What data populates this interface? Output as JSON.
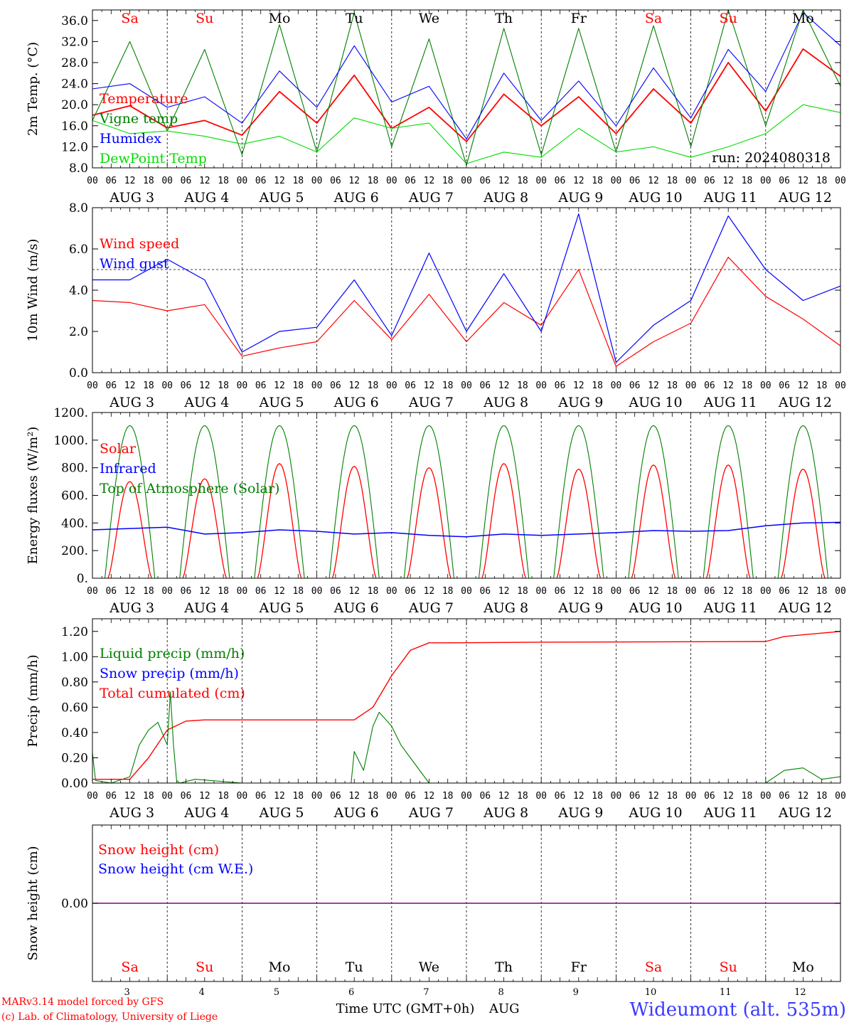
{
  "footer": {
    "model_line": "MARv3.14 model forced by GFS",
    "lab_line": "(c) Lab. of Climatology, University of Liege",
    "xlabel": "Time UTC (GMT+0h)",
    "month": "AUG",
    "station": "Wideumont (alt. 535m)"
  },
  "days": [
    {
      "label": "Sa",
      "date": "3",
      "weekend": true
    },
    {
      "label": "Su",
      "date": "4",
      "weekend": true
    },
    {
      "label": "Mo",
      "date": "5",
      "weekend": false
    },
    {
      "label": "Tu",
      "date": "6",
      "weekend": false
    },
    {
      "label": "We",
      "date": "7",
      "weekend": false
    },
    {
      "label": "Th",
      "date": "8",
      "weekend": false
    },
    {
      "label": "Fr",
      "date": "9",
      "weekend": false
    },
    {
      "label": "Sa",
      "date": "10",
      "weekend": true
    },
    {
      "label": "Su",
      "date": "11",
      "weekend": true
    },
    {
      "label": "Mo",
      "date": "12",
      "weekend": false
    }
  ],
  "hour_ticks": [
    "00",
    "06",
    "12",
    "18"
  ],
  "final_hour_tick": "00",
  "date_labels": [
    "AUG  3",
    "AUG  4",
    "AUG  5",
    "AUG  6",
    "AUG  7",
    "AUG  8",
    "AUG  9",
    "AUG 10",
    "AUG 11",
    "AUG 12"
  ],
  "colors": {
    "red": "#ff0000",
    "green": "#008000",
    "blue": "#0000ff",
    "lightgreen": "#00dd00",
    "purple": "#800080",
    "weekend": "#ff0000"
  },
  "chart_data": [
    {
      "type": "line",
      "ylabel": "2m Temp. (°C)",
      "ylim": [
        8,
        38
      ],
      "yticks": [
        8,
        12,
        16,
        20,
        24,
        28,
        32,
        36
      ],
      "ytick_labels": [
        "8.0",
        "12.0",
        "16.0",
        "20.0",
        "24.0",
        "28.0",
        "32.0",
        "36.0"
      ],
      "annotation": "run: 2024080318",
      "x_hours": [
        0,
        12,
        24,
        36,
        48,
        60,
        72,
        84,
        96,
        108,
        120,
        132,
        144,
        156,
        168,
        180,
        192,
        204,
        216,
        228,
        240
      ],
      "series": [
        {
          "name": "Temperature",
          "color": "#ff0000",
          "values": [
            18.0,
            19.8,
            15.6,
            17.0,
            14.2,
            22.5,
            16.5,
            25.6,
            15.5,
            19.5,
            13.0,
            22.0,
            16.0,
            21.5,
            14.5,
            23.0,
            16.5,
            28.0,
            18.8,
            30.6,
            25.4
          ]
        },
        {
          "name": "Vigne temp",
          "color": "#008000",
          "values": [
            17.0,
            32.0,
            15.0,
            30.5,
            10.5,
            35.2,
            11.0,
            37.5,
            12.0,
            32.5,
            8.5,
            34.5,
            10.5,
            34.5,
            11.0,
            35.0,
            12.0,
            38.0,
            16.0,
            38.0,
            23.5
          ]
        },
        {
          "name": "Humidex",
          "color": "#0000ff",
          "values": [
            23.0,
            24.0,
            19.5,
            21.5,
            16.5,
            26.4,
            19.5,
            31.2,
            20.5,
            23.5,
            13.5,
            26.0,
            17.0,
            24.5,
            16.0,
            27.0,
            17.5,
            30.5,
            22.5,
            37.5,
            31.2
          ]
        },
        {
          "name": "DewPoint Temp",
          "color": "#00dd00",
          "values": [
            17.0,
            14.5,
            15.0,
            14.0,
            12.5,
            14.0,
            11.0,
            17.5,
            15.5,
            16.5,
            8.8,
            11.0,
            10.0,
            15.5,
            11.0,
            12.0,
            10.0,
            12.0,
            14.5,
            20.0,
            18.5
          ]
        }
      ]
    },
    {
      "type": "line",
      "ylabel": "10m Wind (m/s)",
      "ylim": [
        0,
        8
      ],
      "yticks": [
        0,
        2,
        4,
        6,
        8
      ],
      "ytick_labels": [
        "0.0",
        "2.0",
        "4.0",
        "6.0",
        "8.0"
      ],
      "threshold": 5,
      "x_hours": [
        0,
        12,
        24,
        36,
        48,
        60,
        72,
        84,
        96,
        108,
        120,
        132,
        144,
        156,
        168,
        180,
        192,
        204,
        216,
        228,
        240
      ],
      "series": [
        {
          "name": "Wind speed",
          "color": "#ff0000",
          "values": [
            3.5,
            3.4,
            3.0,
            3.3,
            0.8,
            1.2,
            1.5,
            3.5,
            1.6,
            3.8,
            1.5,
            3.4,
            2.3,
            5.0,
            0.3,
            1.5,
            2.4,
            5.6,
            3.7,
            2.6,
            1.3
          ]
        },
        {
          "name": "Wind gust",
          "color": "#0000ff",
          "values": [
            4.5,
            4.5,
            5.5,
            4.5,
            1.0,
            2.0,
            2.2,
            4.5,
            1.8,
            5.8,
            2.0,
            4.8,
            2.0,
            7.7,
            0.5,
            2.3,
            3.5,
            7.6,
            5.0,
            3.5,
            4.2
          ]
        }
      ]
    },
    {
      "type": "line",
      "ylabel": "Energy fluxes (W/m²)",
      "ylim": [
        0,
        1200
      ],
      "yticks": [
        0,
        200,
        400,
        600,
        800,
        1000,
        1200
      ],
      "ytick_labels": [
        "0.",
        "200.",
        "400.",
        "600.",
        "800.",
        "1000.",
        "1200."
      ],
      "toa_peak": 1105,
      "solar_peaks": [
        700,
        720,
        830,
        810,
        800,
        830,
        790,
        820,
        820,
        790
      ],
      "infrared_values": [
        350,
        360,
        370,
        320,
        330,
        350,
        340,
        320,
        330,
        310,
        300,
        320,
        310,
        320,
        330,
        345,
        340,
        345,
        380,
        400,
        405
      ],
      "series": [
        {
          "name": "Solar",
          "color": "#ff0000"
        },
        {
          "name": "Infrared",
          "color": "#0000ff"
        },
        {
          "name": "Top of Atmosphere (Solar)",
          "color": "#008000"
        }
      ]
    },
    {
      "type": "line",
      "ylabel": "Precip (mm/h)",
      "ylim": [
        0,
        1.3
      ],
      "yticks": [
        0,
        0.2,
        0.4,
        0.6,
        0.8,
        1.0,
        1.2
      ],
      "ytick_labels": [
        "0.00",
        "0.20",
        "0.40",
        "0.60",
        "0.80",
        "1.00",
        "1.20"
      ],
      "cumulated_x": [
        0,
        12,
        18,
        24,
        30,
        36,
        48,
        84,
        90,
        96,
        102,
        108,
        114,
        144,
        216,
        222,
        240
      ],
      "cumulated_y": [
        0.03,
        0.03,
        0.2,
        0.42,
        0.49,
        0.5,
        0.5,
        0.5,
        0.6,
        0.85,
        1.05,
        1.11,
        1.11,
        1.115,
        1.12,
        1.16,
        1.2
      ],
      "liquid_x": [
        0,
        1,
        6,
        12,
        15,
        18,
        21,
        24,
        25,
        26,
        27,
        28,
        33,
        48,
        83,
        84,
        87,
        90,
        92,
        96,
        99,
        102,
        108,
        216,
        222,
        228,
        234,
        240
      ],
      "liquid_y": [
        0.24,
        0.02,
        0.0,
        0.05,
        0.3,
        0.42,
        0.48,
        0.3,
        0.72,
        0.3,
        0.02,
        0.0,
        0.03,
        0.0,
        0.0,
        0.25,
        0.1,
        0.45,
        0.56,
        0.45,
        0.3,
        0.2,
        0.0,
        0.0,
        0.1,
        0.12,
        0.03,
        0.05
      ],
      "series": [
        {
          "name": "Liquid precip (mm/h)",
          "color": "#008000"
        },
        {
          "name": "Snow precip (mm/h)",
          "color": "#0000ff"
        },
        {
          "name": "Total cumulated (cm)",
          "color": "#ff0000"
        }
      ]
    },
    {
      "type": "line",
      "ylabel": "Snow height (cm)",
      "ylim": [
        -1,
        1
      ],
      "yticks": [
        0
      ],
      "ytick_labels": [
        "0.00"
      ],
      "series": [
        {
          "name": "Snow height (cm)",
          "color": "#ff0000",
          "values": [
            0,
            0
          ]
        },
        {
          "name": "Snow height (cm W.E.)",
          "color": "#0000ff",
          "values": [
            0,
            0
          ]
        }
      ]
    }
  ]
}
